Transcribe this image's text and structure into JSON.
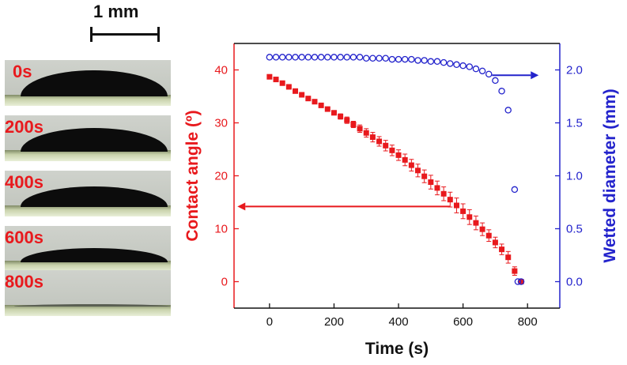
{
  "scale_bar": {
    "label": "1 mm"
  },
  "frames": [
    {
      "label": "0s",
      "drop_height": 0.76
    },
    {
      "label": "200s",
      "drop_height": 0.68
    },
    {
      "label": "400s",
      "drop_height": 0.58
    },
    {
      "label": "600s",
      "drop_height": 0.4
    },
    {
      "label": "800s",
      "drop_height": 0.05
    }
  ],
  "chart_data": {
    "type": "scatter",
    "xlabel": "Time (s)",
    "ylabel_left": "Contact angle (º)",
    "ylabel_right": "Wetted diameter (mm)",
    "xlim": [
      -110,
      900
    ],
    "ylim_left": [
      -5,
      45
    ],
    "ylim_right": [
      -0.25,
      2.25
    ],
    "x_ticks": [
      "0",
      "200",
      "400",
      "600",
      "800"
    ],
    "y_left_ticks": [
      "0",
      "10",
      "20",
      "30",
      "40"
    ],
    "y_right_ticks": [
      "0.0",
      "0.5",
      "1.0",
      "1.5",
      "2.0"
    ],
    "grid": false,
    "colors": {
      "left": "#e8191d",
      "right": "#2323cc"
    },
    "series": [
      {
        "axis": "left",
        "marker": "filled-square",
        "x": [
          0,
          20,
          40,
          60,
          80,
          100,
          120,
          140,
          160,
          180,
          200,
          220,
          240,
          260,
          280,
          300,
          320,
          340,
          360,
          380,
          400,
          420,
          440,
          460,
          480,
          500,
          520,
          540,
          560,
          580,
          600,
          620,
          640,
          660,
          680,
          700,
          720,
          740,
          760,
          780
        ],
        "y": [
          38.7,
          38.2,
          37.5,
          36.8,
          36.0,
          35.3,
          34.6,
          34.0,
          33.3,
          32.6,
          31.9,
          31.2,
          30.5,
          29.7,
          28.9,
          28.1,
          27.3,
          26.5,
          25.7,
          24.8,
          23.9,
          23.0,
          22.0,
          21.0,
          19.9,
          18.8,
          17.7,
          16.6,
          15.5,
          14.4,
          13.3,
          12.2,
          11.1,
          9.9,
          8.7,
          7.4,
          6.1,
          4.6,
          2.0,
          0.0
        ],
        "error": [
          0,
          0,
          0,
          0,
          0,
          0,
          0,
          0,
          0,
          0,
          0,
          0.5,
          0.6,
          0.6,
          0.7,
          0.8,
          0.9,
          0.9,
          1.0,
          1.0,
          1.0,
          1.1,
          1.1,
          1.2,
          1.2,
          1.3,
          1.3,
          1.3,
          1.4,
          1.4,
          1.4,
          1.4,
          1.3,
          1.2,
          1.1,
          1.0,
          1.0,
          1.1,
          0.8,
          0.4
        ]
      },
      {
        "axis": "right",
        "marker": "open-circle",
        "x": [
          0,
          20,
          40,
          60,
          80,
          100,
          120,
          140,
          160,
          180,
          200,
          220,
          240,
          260,
          280,
          300,
          320,
          340,
          360,
          380,
          400,
          420,
          440,
          460,
          480,
          500,
          520,
          540,
          560,
          580,
          600,
          620,
          640,
          660,
          680,
          700,
          720,
          740,
          760,
          770,
          780
        ],
        "y": [
          2.12,
          2.12,
          2.12,
          2.12,
          2.12,
          2.12,
          2.12,
          2.12,
          2.12,
          2.12,
          2.12,
          2.12,
          2.12,
          2.12,
          2.12,
          2.11,
          2.11,
          2.11,
          2.11,
          2.1,
          2.1,
          2.1,
          2.1,
          2.09,
          2.09,
          2.08,
          2.08,
          2.07,
          2.06,
          2.05,
          2.04,
          2.03,
          2.01,
          1.99,
          1.96,
          1.9,
          1.8,
          1.62,
          0.87,
          0.0,
          0.0
        ]
      }
    ],
    "annotations": [
      {
        "type": "arrow",
        "direction": "right",
        "points_to": "right-axis"
      },
      {
        "type": "arrow",
        "direction": "left",
        "points_to": "left-axis"
      }
    ]
  }
}
